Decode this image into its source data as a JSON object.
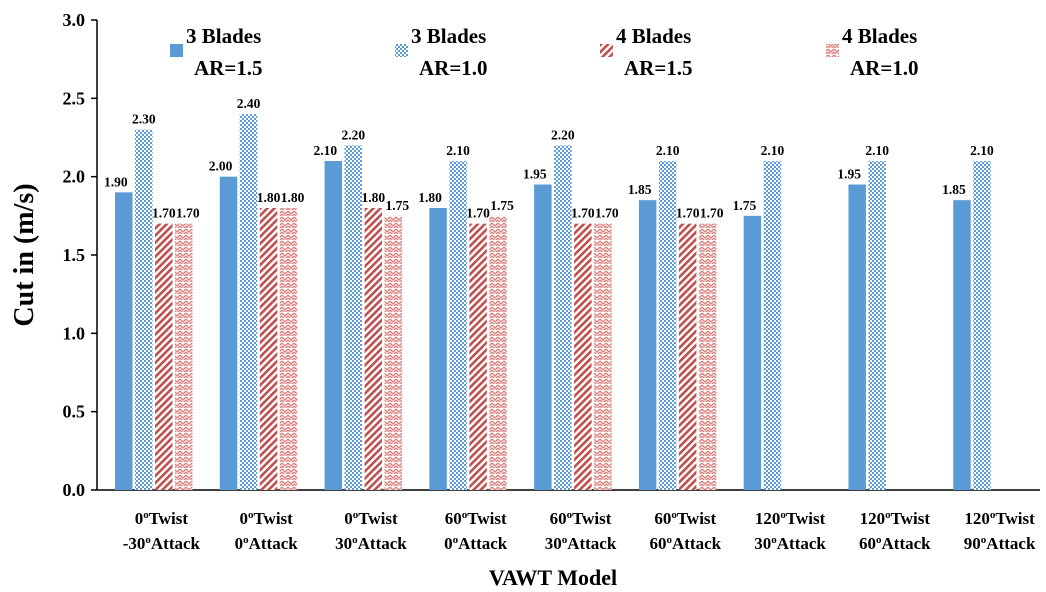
{
  "chart_data": {
    "type": "bar",
    "xlabel": "VAWT Model",
    "ylabel": "Cut in (m/s)",
    "ylim": [
      0,
      3.0
    ],
    "yticks": [
      "0.0",
      "0.5",
      "1.0",
      "1.5",
      "2.0",
      "2.5",
      "3.0"
    ],
    "legend_position": "top",
    "grid": false,
    "categories": [
      {
        "twist": "0",
        "attack": "-30",
        "twist_label": "Twist",
        "attack_label": "Attack"
      },
      {
        "twist": "0",
        "attack": "0",
        "twist_label": "Twist",
        "attack_label": "Attack"
      },
      {
        "twist": "0",
        "attack": "30",
        "twist_label": "Twist",
        "attack_label": "Attack"
      },
      {
        "twist": "60",
        "attack": "0",
        "twist_label": "Twist",
        "attack_label": "Attack"
      },
      {
        "twist": "60",
        "attack": "30",
        "twist_label": "Twist",
        "attack_label": "Attack"
      },
      {
        "twist": "60",
        "attack": "60",
        "twist_label": "Twist",
        "attack_label": "Attack"
      },
      {
        "twist": "120",
        "attack": "30",
        "twist_label": "Twist",
        "attack_label": "Attack"
      },
      {
        "twist": "120",
        "attack": "60",
        "twist_label": "Twist",
        "attack_label": "Attack"
      },
      {
        "twist": "120",
        "attack": "90",
        "twist_label": "Twist",
        "attack_label": "Attack"
      }
    ],
    "degree_symbol": "o",
    "series": [
      {
        "name_line1": "3 Blades",
        "name_line2": "AR=1.5",
        "color": "#5b9bd5",
        "pattern": "solid",
        "values": [
          1.9,
          2.0,
          2.1,
          1.8,
          1.95,
          1.85,
          1.75,
          1.95,
          1.85
        ],
        "labels": [
          "1.90",
          "2.00",
          "2.10",
          "1.80",
          "1.95",
          "1.85",
          "1.75",
          "1.95",
          "1.85"
        ]
      },
      {
        "name_line1": "3 Blades",
        "name_line2": "AR=1.0",
        "color": "#5b9bd5",
        "pattern": "dots",
        "values": [
          2.3,
          2.4,
          2.2,
          2.1,
          2.2,
          2.1,
          2.1,
          2.1,
          2.1
        ],
        "labels": [
          "2.30",
          "2.40",
          "2.20",
          "2.10",
          "2.20",
          "2.10",
          "2.10",
          "2.10",
          "2.10"
        ]
      },
      {
        "name_line1": "4 Blades",
        "name_line2": "AR=1.5",
        "color": "#c0504d",
        "pattern": "diagonal",
        "values": [
          1.7,
          1.8,
          1.8,
          1.7,
          1.7,
          1.7,
          null,
          null,
          null
        ],
        "labels": [
          "1.70",
          "1.80",
          "1.80",
          "1.70",
          "1.70",
          "1.70",
          null,
          null,
          null
        ]
      },
      {
        "name_line1": "4 Blades",
        "name_line2": "AR=1.0",
        "color": "#c0504d",
        "pattern": "zigzag",
        "values": [
          1.7,
          1.8,
          1.75,
          1.75,
          1.7,
          1.7,
          null,
          null,
          null
        ],
        "labels": [
          "1.70",
          "1.80",
          "1.75",
          "1.75",
          "1.70",
          "1.70",
          null,
          null,
          null
        ]
      }
    ]
  }
}
